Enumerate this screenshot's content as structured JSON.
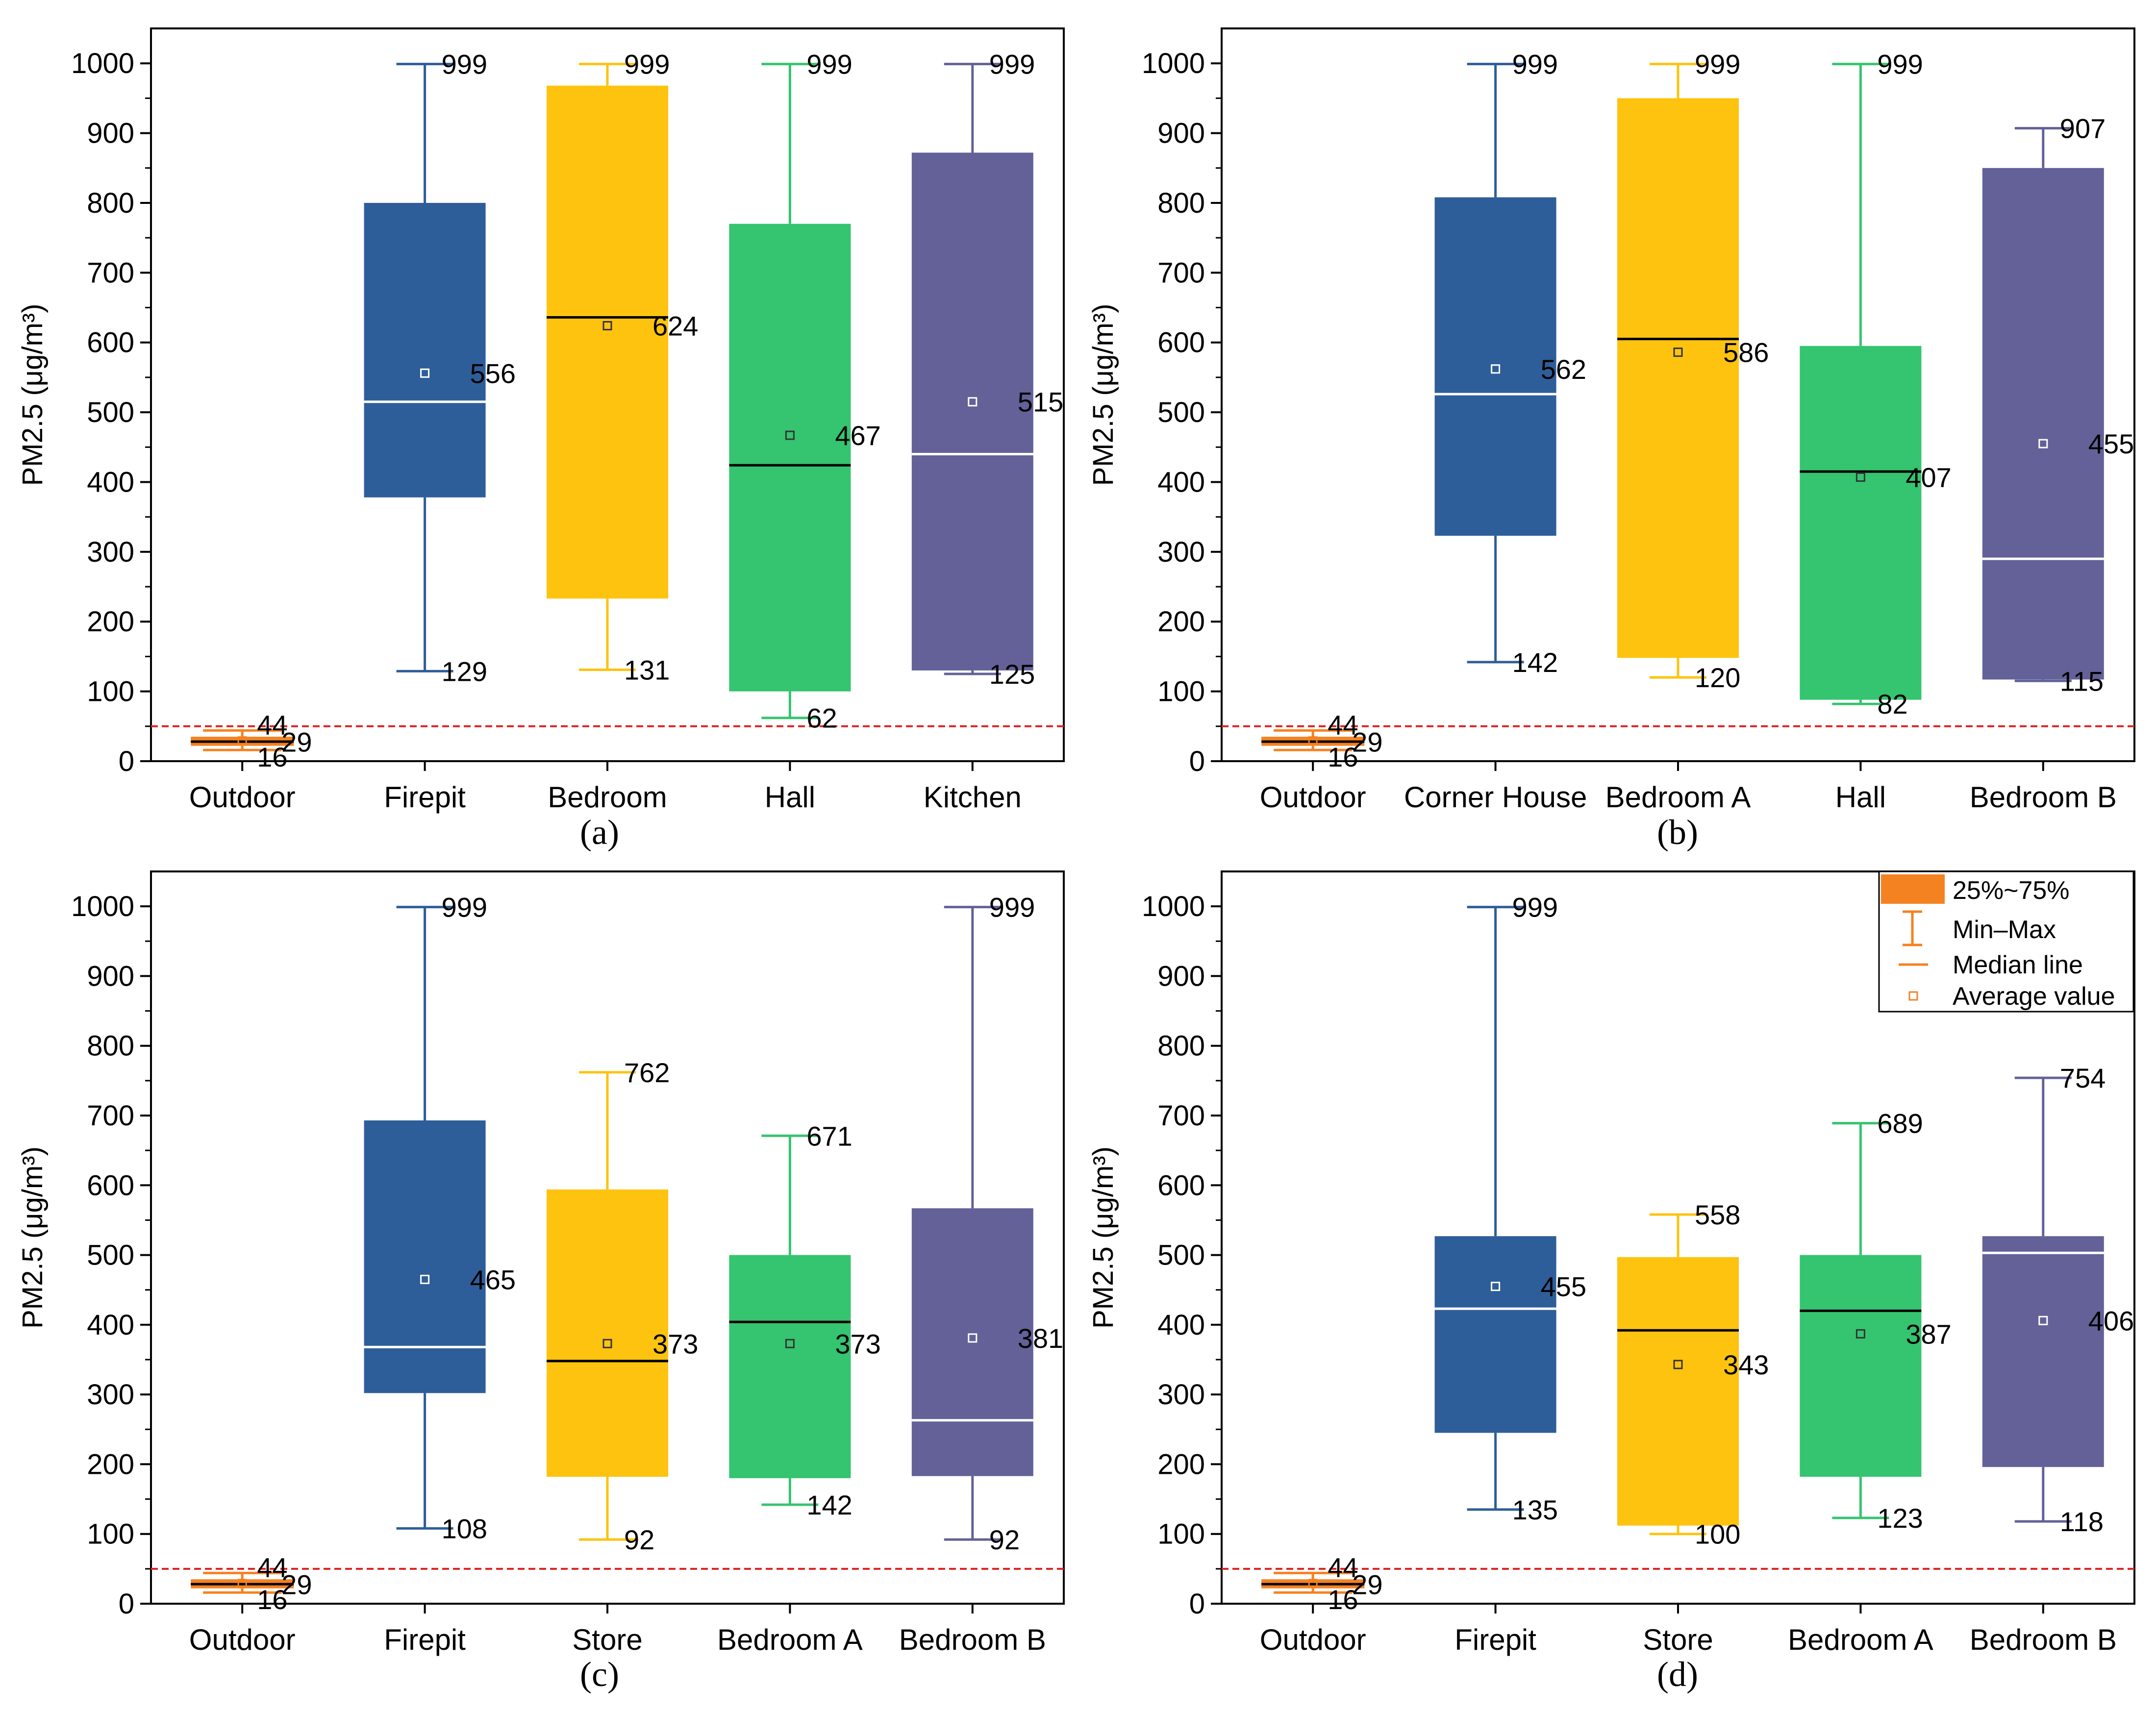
{
  "colors": {
    "outdoor": "#F58220",
    "blue": "#2E5E99",
    "yellow": "#FDC30F",
    "green": "#35C46F",
    "purple": "#636198",
    "threshold": "#E02020",
    "axis": "#000000"
  },
  "legend": {
    "box_label": "25%~75%",
    "range_label": "Min–Max",
    "median_label": "Median line",
    "mean_label": "Average value"
  },
  "chart_data": [
    {
      "type": "box",
      "caption": "(a)",
      "ylabel": "PM2.5 (μg/m³)",
      "ylim": [
        0,
        1050
      ],
      "yticks": [
        "0",
        "100",
        "200",
        "300",
        "400",
        "500",
        "600",
        "700",
        "800",
        "900",
        "1000"
      ],
      "threshold": 50,
      "boxes": [
        {
          "category": "Outdoor",
          "min": 16,
          "q1": 22,
          "median": 28,
          "q3": 35,
          "max": 44,
          "mean": 29,
          "color": "outdoor",
          "median_color": "#000000",
          "labels": {
            "max": "44",
            "mean": "29",
            "min": "16"
          }
        },
        {
          "category": "Firepit",
          "min": 129,
          "q1": 378,
          "median": 515,
          "q3": 800,
          "max": 999,
          "mean": 556,
          "color": "blue",
          "median_color": "#ffffff",
          "labels": {
            "max": "999",
            "mean": "556",
            "min": "129"
          }
        },
        {
          "category": "Bedroom",
          "min": 131,
          "q1": 233,
          "median": 636,
          "q3": 968,
          "max": 999,
          "mean": 624,
          "color": "yellow",
          "median_color": "#000000",
          "labels": {
            "max": "999",
            "mean": "624",
            "min": "131"
          }
        },
        {
          "category": "Hall",
          "min": 62,
          "q1": 100,
          "median": 424,
          "q3": 770,
          "max": 999,
          "mean": 467,
          "color": "green",
          "median_color": "#000000",
          "labels": {
            "max": "999",
            "mean": "467",
            "min": "62"
          }
        },
        {
          "category": "Kitchen",
          "min": 125,
          "q1": 130,
          "median": 440,
          "q3": 872,
          "max": 999,
          "mean": 515,
          "color": "purple",
          "median_color": "#ffffff",
          "labels": {
            "max": "999",
            "mean": "515",
            "min": "125"
          }
        }
      ]
    },
    {
      "type": "box",
      "caption": "(b)",
      "ylabel": "PM2.5 (μg/m³)",
      "ylim": [
        0,
        1050
      ],
      "yticks": [
        "0",
        "100",
        "200",
        "300",
        "400",
        "500",
        "600",
        "700",
        "800",
        "900",
        "1000"
      ],
      "threshold": 50,
      "boxes": [
        {
          "category": "Outdoor",
          "min": 16,
          "q1": 22,
          "median": 28,
          "q3": 35,
          "max": 44,
          "mean": 29,
          "color": "outdoor",
          "median_color": "#000000",
          "labels": {
            "max": "44",
            "mean": "29",
            "min": "16"
          }
        },
        {
          "category": "Corner House",
          "min": 142,
          "q1": 323,
          "median": 526,
          "q3": 808,
          "max": 999,
          "mean": 562,
          "color": "blue",
          "median_color": "#ffffff",
          "labels": {
            "max": "999",
            "mean": "562",
            "min": "142"
          }
        },
        {
          "category": "Bedroom A",
          "min": 120,
          "q1": 148,
          "median": 605,
          "q3": 950,
          "max": 999,
          "mean": 586,
          "color": "yellow",
          "median_color": "#000000",
          "labels": {
            "max": "999",
            "mean": "586",
            "min": "120"
          }
        },
        {
          "category": "Hall",
          "min": 82,
          "q1": 88,
          "median": 415,
          "q3": 595,
          "max": 999,
          "mean": 407,
          "color": "green",
          "median_color": "#000000",
          "labels": {
            "max": "999",
            "mean": "407",
            "min": "82"
          }
        },
        {
          "category": "Bedroom B",
          "min": 115,
          "q1": 117,
          "median": 290,
          "q3": 850,
          "max": 907,
          "mean": 455,
          "color": "purple",
          "median_color": "#ffffff",
          "labels": {
            "max": "907",
            "mean": "455",
            "min": "115"
          }
        }
      ]
    },
    {
      "type": "box",
      "caption": "(c)",
      "ylabel": "PM2.5 (μg/m³)",
      "ylim": [
        0,
        1050
      ],
      "yticks": [
        "0",
        "100",
        "200",
        "300",
        "400",
        "500",
        "600",
        "700",
        "800",
        "900",
        "1000"
      ],
      "threshold": 50,
      "boxes": [
        {
          "category": "Outdoor",
          "min": 16,
          "q1": 22,
          "median": 28,
          "q3": 35,
          "max": 44,
          "mean": 29,
          "color": "outdoor",
          "median_color": "#000000",
          "labels": {
            "max": "44",
            "mean": "29",
            "min": "16"
          }
        },
        {
          "category": "Firepit",
          "min": 108,
          "q1": 302,
          "median": 368,
          "q3": 693,
          "max": 999,
          "mean": 465,
          "color": "blue",
          "median_color": "#ffffff",
          "labels": {
            "max": "999",
            "mean": "465",
            "min": "108"
          }
        },
        {
          "category": "Store",
          "min": 92,
          "q1": 182,
          "median": 348,
          "q3": 594,
          "max": 762,
          "mean": 373,
          "color": "yellow",
          "median_color": "#000000",
          "labels": {
            "max": "762",
            "mean": "373",
            "min": "92"
          }
        },
        {
          "category": "Bedroom A",
          "min": 142,
          "q1": 180,
          "median": 404,
          "q3": 500,
          "max": 671,
          "mean": 373,
          "color": "green",
          "median_color": "#000000",
          "labels": {
            "max": "671",
            "mean": "373",
            "min": "142"
          }
        },
        {
          "category": "Bedroom B",
          "min": 92,
          "q1": 183,
          "median": 263,
          "q3": 567,
          "max": 999,
          "mean": 381,
          "color": "purple",
          "median_color": "#ffffff",
          "labels": {
            "max": "999",
            "mean": "381",
            "min": "92"
          }
        }
      ]
    },
    {
      "type": "box",
      "caption": "(d)",
      "ylabel": "PM2.5 (μg/m³)",
      "ylim": [
        0,
        1050
      ],
      "yticks": [
        "0",
        "100",
        "200",
        "300",
        "400",
        "500",
        "600",
        "700",
        "800",
        "900",
        "1000"
      ],
      "threshold": 50,
      "legend": true,
      "boxes": [
        {
          "category": "Outdoor",
          "min": 16,
          "q1": 22,
          "median": 28,
          "q3": 35,
          "max": 44,
          "mean": 29,
          "color": "outdoor",
          "median_color": "#000000",
          "labels": {
            "max": "44",
            "mean": "29",
            "min": "16"
          }
        },
        {
          "category": "Firepit",
          "min": 135,
          "q1": 245,
          "median": 423,
          "q3": 527,
          "max": 999,
          "mean": 455,
          "color": "blue",
          "median_color": "#ffffff",
          "labels": {
            "max": "999",
            "mean": "455",
            "min": "135"
          }
        },
        {
          "category": "Store",
          "min": 100,
          "q1": 112,
          "median": 392,
          "q3": 497,
          "max": 558,
          "mean": 343,
          "color": "yellow",
          "median_color": "#000000",
          "labels": {
            "max": "558",
            "mean": "343",
            "min": "100"
          }
        },
        {
          "category": "Bedroom A",
          "min": 123,
          "q1": 182,
          "median": 420,
          "q3": 500,
          "max": 689,
          "mean": 387,
          "color": "green",
          "median_color": "#000000",
          "labels": {
            "max": "689",
            "mean": "387",
            "min": "123"
          }
        },
        {
          "category": "Bedroom B",
          "min": 118,
          "q1": 196,
          "median": 503,
          "q3": 527,
          "max": 754,
          "mean": 406,
          "color": "purple",
          "median_color": "#ffffff",
          "labels": {
            "max": "754",
            "mean": "406",
            "min": "118"
          }
        }
      ]
    }
  ]
}
